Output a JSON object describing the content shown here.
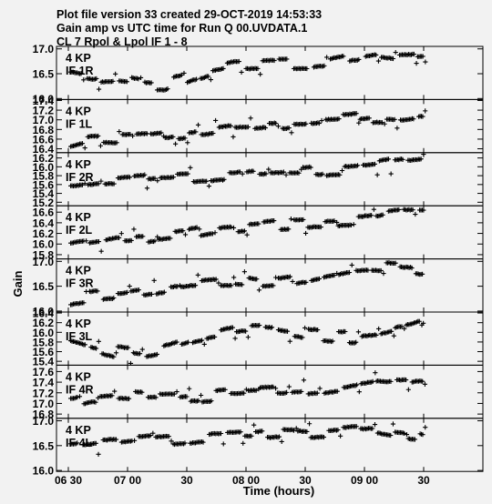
{
  "header": {
    "line1": "Plot file version 33  created 29-OCT-2019 14:53:33",
    "line2": "Gain amp vs UTC time for Run Q 00.UVDATA.1",
    "line3": "CL 7  Rpol & Lpol  IF 1 - 8"
  },
  "chart_data": {
    "type": "scatter",
    "xlabel": "Time (hours)",
    "ylabel": "Gain",
    "x_unit": "hours UT",
    "xlim": [
      6.4,
      10.0
    ],
    "x_ticks": [
      {
        "v": 6.5,
        "label": "06 30"
      },
      {
        "v": 7.0,
        "label": "07 00"
      },
      {
        "v": 7.5,
        "label": "30"
      },
      {
        "v": 8.0,
        "label": "08 00"
      },
      {
        "v": 8.5,
        "label": "30"
      },
      {
        "v": 9.0,
        "label": "09 00"
      },
      {
        "v": 9.5,
        "label": "30"
      }
    ],
    "panels": [
      {
        "antenna": "4 KP",
        "channel": "IF 1R",
        "ylim": [
          15.98,
          17.05
        ],
        "y_ticks": [
          {
            "v": 17.0,
            "label": "17.0"
          },
          {
            "v": 16.5,
            "label": "16.5"
          },
          {
            "v": 16.0,
            "label": "16.0"
          }
        ],
        "knots": [
          [
            6.52,
            16.42
          ],
          [
            6.7,
            16.36
          ],
          [
            6.9,
            16.4
          ],
          [
            7.1,
            16.33
          ],
          [
            7.3,
            16.28
          ],
          [
            7.5,
            16.42
          ],
          [
            7.7,
            16.57
          ],
          [
            7.9,
            16.66
          ],
          [
            8.1,
            16.69
          ],
          [
            8.3,
            16.7
          ],
          [
            8.5,
            16.69
          ],
          [
            8.7,
            16.72
          ],
          [
            8.9,
            16.82
          ],
          [
            9.1,
            16.88
          ],
          [
            9.3,
            16.83
          ],
          [
            9.5,
            16.85
          ]
        ]
      },
      {
        "antenna": "4 KP",
        "channel": "IF 1L",
        "ylim": [
          16.32,
          17.42
        ],
        "y_ticks": [
          {
            "v": 17.4,
            "label": "17.4"
          },
          {
            "v": 17.2,
            "label": "17.2"
          },
          {
            "v": 17.0,
            "label": "17.0"
          },
          {
            "v": 16.8,
            "label": "16.8"
          },
          {
            "v": 16.6,
            "label": "16.6"
          },
          {
            "v": 16.4,
            "label": "16.4"
          }
        ],
        "knots": [
          [
            6.52,
            16.5
          ],
          [
            6.7,
            16.62
          ],
          [
            6.9,
            16.6
          ],
          [
            7.1,
            16.62
          ],
          [
            7.3,
            16.66
          ],
          [
            7.5,
            16.73
          ],
          [
            7.7,
            16.78
          ],
          [
            7.9,
            16.83
          ],
          [
            8.1,
            16.86
          ],
          [
            8.3,
            16.9
          ],
          [
            8.5,
            16.93
          ],
          [
            8.7,
            16.96
          ],
          [
            8.9,
            17.0
          ],
          [
            9.1,
            17.06
          ],
          [
            9.3,
            17.0
          ],
          [
            9.5,
            17.05
          ]
        ]
      },
      {
        "antenna": "4 KP",
        "channel": "IF 2R",
        "ylim": [
          15.12,
          16.32
        ],
        "y_ticks": [
          {
            "v": 16.2,
            "label": "16.2"
          },
          {
            "v": 16.0,
            "label": "16.0"
          },
          {
            "v": 15.8,
            "label": "15.8"
          },
          {
            "v": 15.6,
            "label": "15.6"
          },
          {
            "v": 15.4,
            "label": "15.4"
          },
          {
            "v": 15.2,
            "label": "15.2"
          }
        ],
        "knots": [
          [
            6.52,
            15.55
          ],
          [
            6.7,
            15.6
          ],
          [
            6.9,
            15.65
          ],
          [
            7.1,
            15.68
          ],
          [
            7.3,
            15.72
          ],
          [
            7.5,
            15.75
          ],
          [
            7.7,
            15.78
          ],
          [
            7.9,
            15.82
          ],
          [
            8.1,
            15.85
          ],
          [
            8.3,
            15.88
          ],
          [
            8.5,
            15.9
          ],
          [
            8.7,
            15.93
          ],
          [
            8.9,
            15.95
          ],
          [
            9.1,
            16.0
          ],
          [
            9.3,
            16.08
          ],
          [
            9.5,
            16.12
          ]
        ]
      },
      {
        "antenna": "4 KP",
        "channel": "IF 2L",
        "ylim": [
          15.72,
          16.72
        ],
        "y_ticks": [
          {
            "v": 16.6,
            "label": "16.6"
          },
          {
            "v": 16.4,
            "label": "16.4"
          },
          {
            "v": 16.2,
            "label": "16.2"
          },
          {
            "v": 16.0,
            "label": "16.0"
          },
          {
            "v": 15.8,
            "label": "15.8"
          }
        ],
        "knots": [
          [
            6.52,
            15.95
          ],
          [
            6.7,
            16.0
          ],
          [
            6.9,
            16.08
          ],
          [
            7.1,
            16.1
          ],
          [
            7.3,
            16.15
          ],
          [
            7.5,
            16.2
          ],
          [
            7.7,
            16.28
          ],
          [
            7.9,
            16.32
          ],
          [
            8.1,
            16.35
          ],
          [
            8.3,
            16.38
          ],
          [
            8.5,
            16.4
          ],
          [
            8.7,
            16.42
          ],
          [
            8.9,
            16.45
          ],
          [
            9.1,
            16.5
          ],
          [
            9.3,
            16.56
          ],
          [
            9.5,
            16.55
          ]
        ]
      },
      {
        "antenna": "4 KP",
        "channel": "IF 3R",
        "ylim": [
          15.98,
          17.05
        ],
        "y_ticks": [
          {
            "v": 17.0,
            "label": "17.0"
          },
          {
            "v": 16.5,
            "label": "16.5"
          },
          {
            "v": 16.0,
            "label": "16.0"
          }
        ],
        "knots": [
          [
            6.52,
            16.22
          ],
          [
            6.7,
            16.28
          ],
          [
            6.9,
            16.33
          ],
          [
            7.1,
            16.38
          ],
          [
            7.3,
            16.45
          ],
          [
            7.5,
            16.52
          ],
          [
            7.7,
            16.58
          ],
          [
            7.9,
            16.6
          ],
          [
            8.1,
            16.55
          ],
          [
            8.3,
            16.58
          ],
          [
            8.5,
            16.65
          ],
          [
            8.7,
            16.75
          ],
          [
            8.9,
            16.85
          ],
          [
            9.1,
            16.88
          ],
          [
            9.3,
            16.84
          ],
          [
            9.5,
            16.82
          ]
        ]
      },
      {
        "antenna": "4 KP",
        "channel": "IF 3L",
        "ylim": [
          15.32,
          16.42
        ],
        "y_ticks": [
          {
            "v": 16.4,
            "label": "16.4"
          },
          {
            "v": 16.2,
            "label": "16.2"
          },
          {
            "v": 16.0,
            "label": "16.0"
          },
          {
            "v": 15.8,
            "label": "15.8"
          },
          {
            "v": 15.6,
            "label": "15.6"
          },
          {
            "v": 15.4,
            "label": "15.4"
          }
        ],
        "knots": [
          [
            6.52,
            15.85
          ],
          [
            6.7,
            15.72
          ],
          [
            6.9,
            15.6
          ],
          [
            7.1,
            15.55
          ],
          [
            7.3,
            15.65
          ],
          [
            7.5,
            15.78
          ],
          [
            7.7,
            15.92
          ],
          [
            7.9,
            16.02
          ],
          [
            8.1,
            16.05
          ],
          [
            8.3,
            16.0
          ],
          [
            8.5,
            15.95
          ],
          [
            8.7,
            15.92
          ],
          [
            8.9,
            15.9
          ],
          [
            9.1,
            15.95
          ],
          [
            9.3,
            16.05
          ],
          [
            9.5,
            16.2
          ]
        ]
      },
      {
        "antenna": "4 KP",
        "channel": "IF 4R",
        "ylim": [
          16.72,
          17.72
        ],
        "y_ticks": [
          {
            "v": 17.6,
            "label": "17.6"
          },
          {
            "v": 17.4,
            "label": "17.4"
          },
          {
            "v": 17.2,
            "label": "17.2"
          },
          {
            "v": 17.0,
            "label": "17.0"
          },
          {
            "v": 16.8,
            "label": "16.8"
          }
        ],
        "knots": [
          [
            6.52,
            17.05
          ],
          [
            6.7,
            17.12
          ],
          [
            6.9,
            17.15
          ],
          [
            7.1,
            17.12
          ],
          [
            7.3,
            17.1
          ],
          [
            7.5,
            17.12
          ],
          [
            7.7,
            17.15
          ],
          [
            7.9,
            17.18
          ],
          [
            8.1,
            17.2
          ],
          [
            8.3,
            17.22
          ],
          [
            8.5,
            17.25
          ],
          [
            8.7,
            17.3
          ],
          [
            8.9,
            17.38
          ],
          [
            9.1,
            17.45
          ],
          [
            9.3,
            17.42
          ],
          [
            9.5,
            17.45
          ]
        ]
      },
      {
        "antenna": "4 KP",
        "channel": "IF 4L",
        "ylim": [
          15.98,
          17.05
        ],
        "y_ticks": [
          {
            "v": 17.0,
            "label": "17.0"
          },
          {
            "v": 16.5,
            "label": "16.5"
          },
          {
            "v": 16.0,
            "label": "16.0"
          }
        ],
        "knots": [
          [
            6.52,
            16.42
          ],
          [
            6.7,
            16.48
          ],
          [
            6.9,
            16.52
          ],
          [
            7.1,
            16.58
          ],
          [
            7.3,
            16.62
          ],
          [
            7.5,
            16.65
          ],
          [
            7.7,
            16.7
          ],
          [
            7.9,
            16.72
          ],
          [
            8.1,
            16.75
          ],
          [
            8.3,
            16.78
          ],
          [
            8.5,
            16.75
          ],
          [
            8.7,
            16.78
          ],
          [
            8.9,
            16.82
          ],
          [
            9.1,
            16.85
          ],
          [
            9.3,
            16.78
          ],
          [
            9.5,
            16.7
          ]
        ]
      }
    ]
  }
}
